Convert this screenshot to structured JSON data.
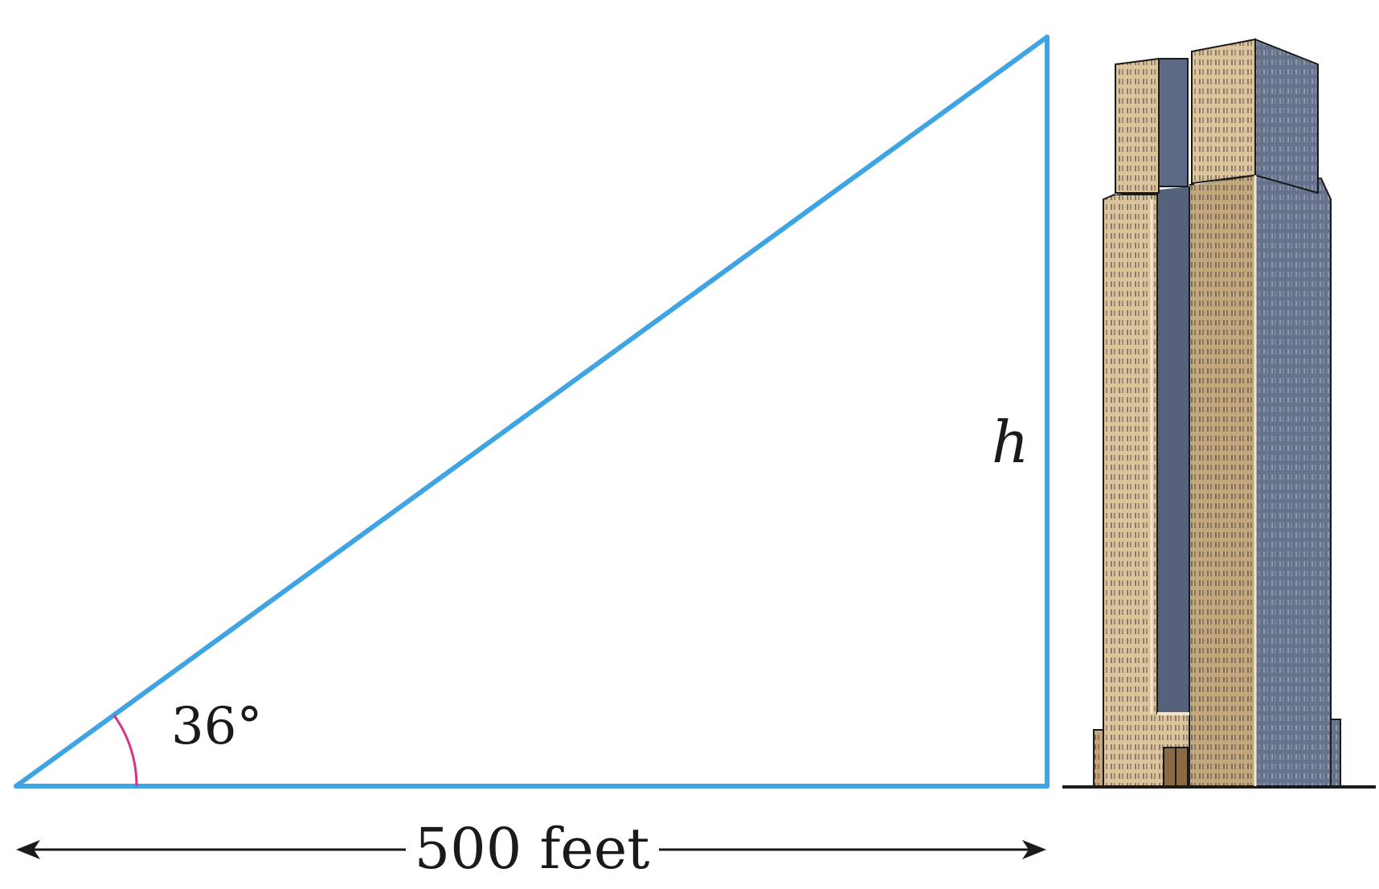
{
  "diagram": {
    "angle_label": "36°",
    "height_label": "h",
    "distance_label": "500 feet"
  },
  "colors": {
    "triangle": "#3fa4e4",
    "angle_arc": "#d6338a",
    "text": "#1a1a1a",
    "building_light": "#d8bf95",
    "building_mid": "#b89a6c",
    "building_dark": "#5d6a85"
  },
  "figure": {
    "angle_degrees": 36,
    "base_distance_feet": 500,
    "object_icon": "skyscraper-icon"
  }
}
